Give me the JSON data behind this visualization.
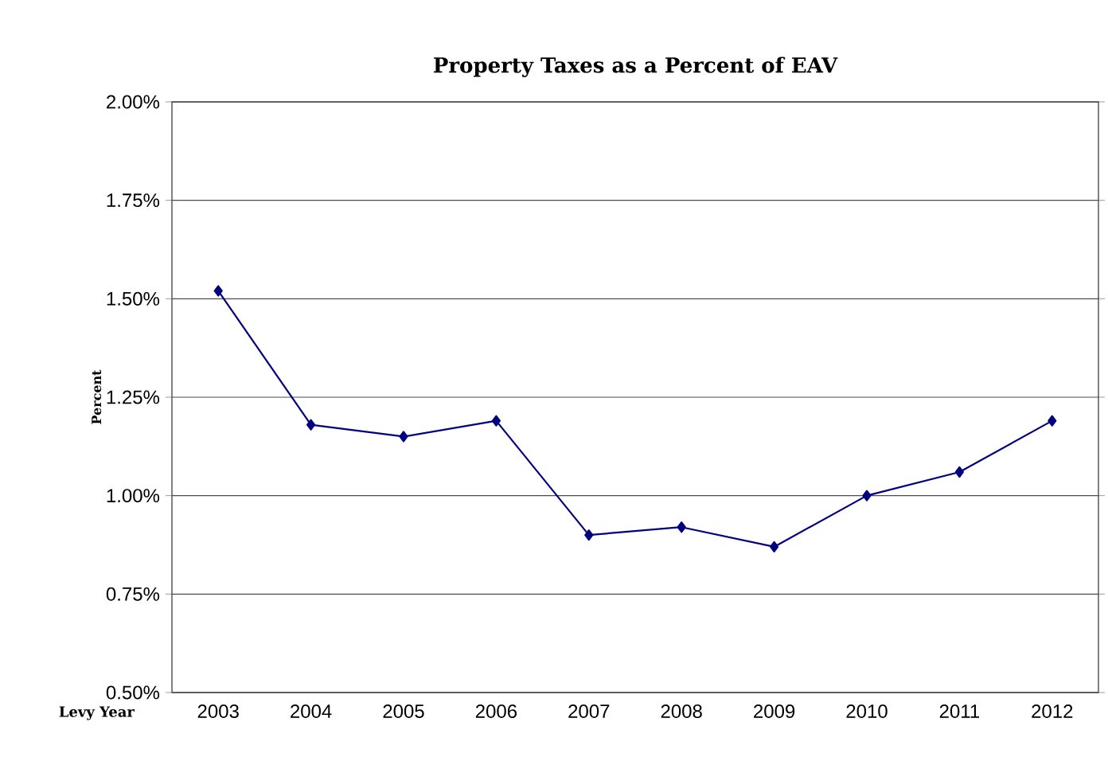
{
  "chart_data": {
    "type": "line",
    "title": "Property Taxes as a Percent of EAV",
    "xlabel": "Levy Year",
    "ylabel": "Percent",
    "categories": [
      "2003",
      "2004",
      "2005",
      "2006",
      "2007",
      "2008",
      "2009",
      "2010",
      "2011",
      "2012"
    ],
    "series": [
      {
        "color": "#000080",
        "values": [
          1.52,
          1.18,
          1.15,
          1.19,
          0.9,
          0.92,
          0.87,
          1.0,
          1.06,
          1.19
        ]
      }
    ],
    "ylim": [
      0.5,
      2.0
    ],
    "yticks": [
      {
        "value": 0.5,
        "label": "0.50%"
      },
      {
        "value": 0.75,
        "label": "0.75%"
      },
      {
        "value": 1.0,
        "label": "1.00%"
      },
      {
        "value": 1.25,
        "label": "1.25%"
      },
      {
        "value": 1.5,
        "label": "1.50%"
      },
      {
        "value": 1.75,
        "label": "1.75%"
      },
      {
        "value": 2.0,
        "label": "2.00%"
      }
    ],
    "grid": "y",
    "marker": "diamond",
    "line_style": "solid"
  }
}
